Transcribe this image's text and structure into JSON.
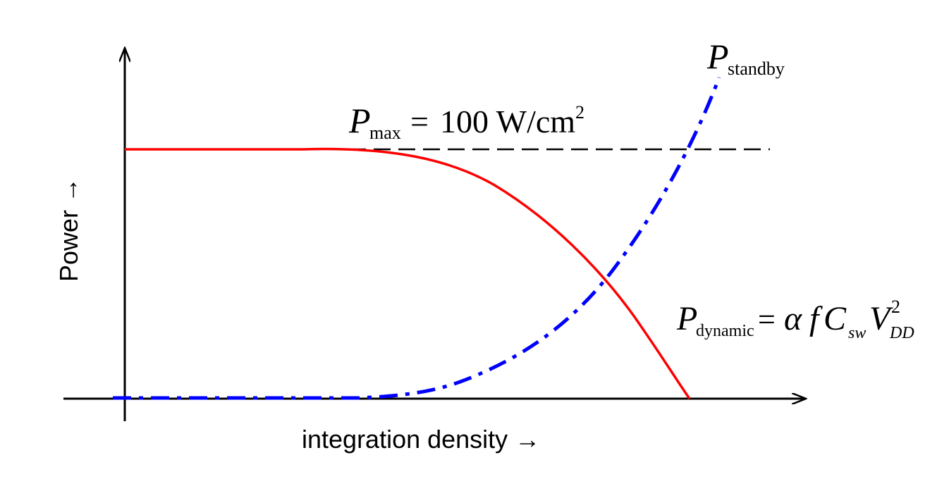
{
  "chart_data": {
    "type": "line",
    "xlabel": "integration density →",
    "ylabel": "Power →",
    "max_line": {
      "symbol": "P",
      "subscript": "max",
      "equals": "=",
      "value": "100 W/cm",
      "exponent": "2",
      "color": "#000000",
      "style": "dashed"
    },
    "series": [
      {
        "key": "standby",
        "symbol": "P",
        "subscript": "standby",
        "color": "#0000ff",
        "style": "dash-dot"
      },
      {
        "key": "dynamic",
        "symbol": "P",
        "subscript": "dynamic",
        "formula": {
          "equals": "=",
          "alpha": "α",
          "f": "f",
          "C": "C",
          "C_sub": "sw",
          "V": "V",
          "V_sup": "2",
          "V_sub": "DD"
        },
        "color": "#ff0000",
        "style": "solid"
      }
    ],
    "grid": false,
    "legend": "none"
  }
}
